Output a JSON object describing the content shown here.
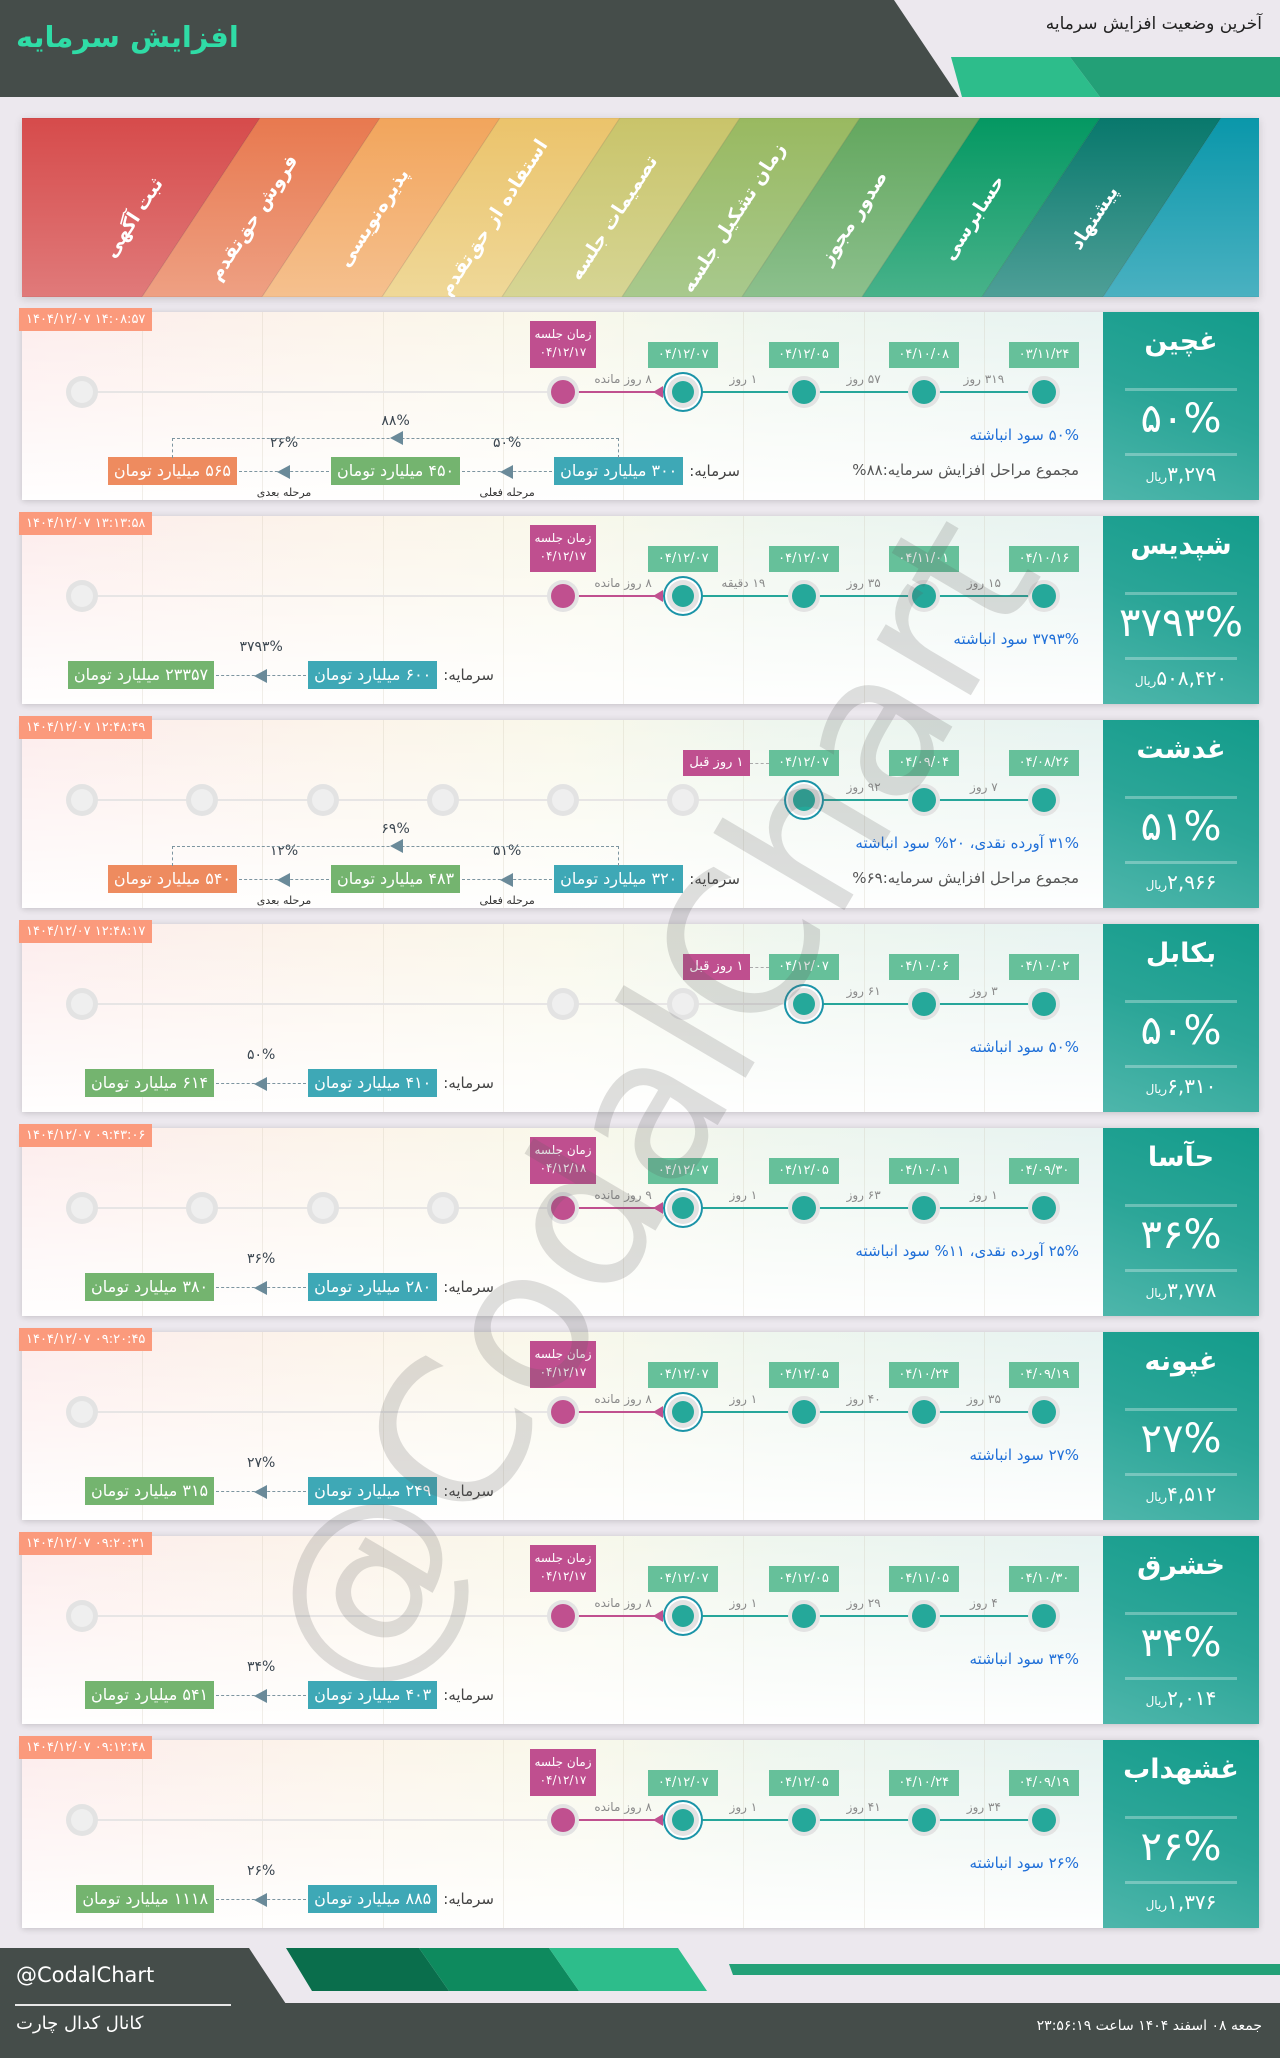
{
  "header": {
    "title": "افزایش سرمایه",
    "subtitle": "آخرین وضعیت افزایش سرمایه"
  },
  "colors": {
    "header_dark": "#454d4a",
    "accent_green": "#2dbd8b",
    "accent_green_dark": "#23a077",
    "done": "#25a89a",
    "meeting": "#bf4f8f",
    "date_badge": "#66c09a",
    "timestamp_badge": "#fb9a7c"
  },
  "stages": {
    "items": [
      {
        "label": "ثبت آگهی",
        "color_top": "#d64b4b",
        "color_bottom": "#e07a7a"
      },
      {
        "label": "فروش حق‌تقدم",
        "color_top": "#e8794f",
        "color_bottom": "#eea083"
      },
      {
        "label": "پذیره‌نویسی",
        "color_top": "#f2a55c",
        "color_bottom": "#f5c08e"
      },
      {
        "label": "استفاده از حق‌تقدم",
        "color_top": "#ebc36b",
        "color_bottom": "#efd898"
      },
      {
        "label": "تصمیمات جلسه",
        "color_top": "#c9c46a",
        "color_bottom": "#d6d594"
      },
      {
        "label": "زمان تشکیل جلسه",
        "color_top": "#99b960",
        "color_bottom": "#a8c98d"
      },
      {
        "label": "صدور مجوز",
        "color_top": "#63a75e",
        "color_bottom": "#8cc08d"
      },
      {
        "label": "حسابرسی",
        "color_top": "#049862",
        "color_bottom": "#48b28a"
      },
      {
        "label": "پیشنهاد",
        "color_top": "#08786c",
        "color_bottom": "#4e9f97"
      }
    ],
    "end_band": {
      "color_top": "#0a97aa",
      "color_bottom": "#4ab1c1"
    }
  },
  "labels": {
    "meeting": "زمان جلسه",
    "capital": "سرمایه:",
    "currency": "ریال"
  },
  "cards": [
    {
      "name": "غچین",
      "percent": "۵۰%",
      "price": "۳,۲۷۹",
      "timestamp": "۱۴۰۴/۱۲/۰۷ ۱۴:۰۸:۵۷",
      "inactive_stages": [
        0
      ],
      "steps": [
        {
          "stage": 8,
          "date": "۰۳/۱۱/۲۴"
        },
        {
          "stage": 7,
          "date": "۰۴/۱۰/۰۸"
        },
        {
          "stage": 6,
          "date": "۰۴/۱۲/۰۵"
        },
        {
          "stage": 5,
          "date": "۰۴/۱۲/۰۷",
          "current": true
        }
      ],
      "gaps": [
        "۳۱۹ روز",
        "۵۷ روز",
        "۱ روز"
      ],
      "meeting": {
        "stage": 4,
        "date": "۰۴/۱۲/۱۷",
        "remaining": "۸ روز مانده"
      },
      "description": "۵۰% سود انباشته",
      "summary": "مجموع مراحل افزایش سرمایه:۸۸%",
      "capital": {
        "amounts": [
          "۳۰۰ میلیارد تومان",
          "۴۵۰ میلیارد تومان",
          "۵۶۵ میلیارد تومان"
        ],
        "steps": [
          {
            "percent": "۵۰%",
            "caption": "مرحله فعلی"
          },
          {
            "percent": "۲۶%",
            "caption": "مرحله بعدی"
          }
        ],
        "total": "۸۸%"
      }
    },
    {
      "name": "شپدیس",
      "percent": "۳۷۹۳%",
      "price": "۵۰۸,۴۲۰",
      "timestamp": "۱۴۰۴/۱۲/۰۷ ۱۳:۱۳:۵۸",
      "inactive_stages": [
        0
      ],
      "steps": [
        {
          "stage": 8,
          "date": "۰۴/۱۰/۱۶"
        },
        {
          "stage": 7,
          "date": "۰۴/۱۱/۰۱"
        },
        {
          "stage": 6,
          "date": "۰۴/۱۲/۰۷"
        },
        {
          "stage": 5,
          "date": "۰۴/۱۲/۰۷",
          "current": true
        }
      ],
      "gaps": [
        "۱۵ روز",
        "۳۵ روز",
        "۱۹ دقیقه"
      ],
      "meeting": {
        "stage": 4,
        "date": "۰۴/۱۲/۱۷",
        "remaining": "۸ روز مانده"
      },
      "description": "۳۷۹۳% سود انباشته",
      "capital": {
        "amounts": [
          "۶۰۰ میلیارد تومان",
          "۲۳۳۵۷ میلیارد تومان"
        ],
        "steps": [
          {
            "percent": "۳۷۹۳%"
          }
        ]
      }
    },
    {
      "name": "غدشت",
      "percent": "۵۱%",
      "price": "۲,۹۶۶",
      "timestamp": "۱۴۰۴/۱۲/۰۷ ۱۲:۴۸:۴۹",
      "inactive_stages": [
        0,
        1,
        2,
        3,
        4,
        5
      ],
      "steps": [
        {
          "stage": 8,
          "date": "۰۴/۰۸/۲۶"
        },
        {
          "stage": 7,
          "date": "۰۴/۰۹/۰۴"
        },
        {
          "stage": 6,
          "date": "۰۴/۱۲/۰۷",
          "current": true
        }
      ],
      "gaps": [
        "۷ روز",
        "۹۲ روز"
      ],
      "ago": "۱ روز قبل",
      "description": "۳۱% آورده نقدی، ۲۰% سود انباشته",
      "summary": "مجموع مراحل افزایش سرمایه:۶۹%",
      "capital": {
        "amounts": [
          "۳۲۰ میلیارد تومان",
          "۴۸۳ میلیارد تومان",
          "۵۴۰ میلیارد تومان"
        ],
        "steps": [
          {
            "percent": "۵۱%",
            "caption": "مرحله فعلی"
          },
          {
            "percent": "۱۲%",
            "caption": "مرحله بعدی"
          }
        ],
        "total": "۶۹%"
      }
    },
    {
      "name": "بکابل",
      "percent": "۵۰%",
      "price": "۶,۳۱۰",
      "timestamp": "۱۴۰۴/۱۲/۰۷ ۱۲:۴۸:۱۷",
      "inactive_stages": [
        0,
        4,
        5
      ],
      "steps": [
        {
          "stage": 8,
          "date": "۰۴/۱۰/۰۲"
        },
        {
          "stage": 7,
          "date": "۰۴/۱۰/۰۶"
        },
        {
          "stage": 6,
          "date": "۰۴/۱۲/۰۷",
          "current": true
        }
      ],
      "gaps": [
        "۳ روز",
        "۶۱ روز"
      ],
      "ago": "۱ روز قبل",
      "description": "۵۰% سود انباشته",
      "capital": {
        "amounts": [
          "۴۱۰ میلیارد تومان",
          "۶۱۴ میلیارد تومان"
        ],
        "steps": [
          {
            "percent": "۵۰%"
          }
        ]
      }
    },
    {
      "name": "حآسا",
      "percent": "۳۶%",
      "price": "۳,۷۷۸",
      "timestamp": "۱۴۰۴/۱۲/۰۷ ۰۹:۴۳:۰۶",
      "inactive_stages": [
        0,
        1,
        2,
        3
      ],
      "steps": [
        {
          "stage": 8,
          "date": "۰۴/۰۹/۳۰"
        },
        {
          "stage": 7,
          "date": "۰۴/۱۰/۰۱"
        },
        {
          "stage": 6,
          "date": "۰۴/۱۲/۰۵"
        },
        {
          "stage": 5,
          "date": "۰۴/۱۲/۰۷",
          "current": true
        }
      ],
      "gaps": [
        "۱ روز",
        "۶۳ روز",
        "۱ روز"
      ],
      "meeting": {
        "stage": 4,
        "date": "۰۴/۱۲/۱۸",
        "remaining": "۹ روز مانده"
      },
      "description": "۲۵% آورده نقدی، ۱۱% سود انباشته",
      "capital": {
        "amounts": [
          "۲۸۰ میلیارد تومان",
          "۳۸۰ میلیارد تومان"
        ],
        "steps": [
          {
            "percent": "۳۶%"
          }
        ]
      }
    },
    {
      "name": "غپونه",
      "percent": "۲۷%",
      "price": "۴,۵۱۲",
      "timestamp": "۱۴۰۴/۱۲/۰۷ ۰۹:۲۰:۴۵",
      "inactive_stages": [
        0
      ],
      "steps": [
        {
          "stage": 8,
          "date": "۰۴/۰۹/۱۹"
        },
        {
          "stage": 7,
          "date": "۰۴/۱۰/۲۴"
        },
        {
          "stage": 6,
          "date": "۰۴/۱۲/۰۵"
        },
        {
          "stage": 5,
          "date": "۰۴/۱۲/۰۷",
          "current": true
        }
      ],
      "gaps": [
        "۳۵ روز",
        "۴۰ روز",
        "۱ روز"
      ],
      "meeting": {
        "stage": 4,
        "date": "۰۴/۱۲/۱۷",
        "remaining": "۸ روز مانده"
      },
      "description": "۲۷% سود انباشته",
      "capital": {
        "amounts": [
          "۲۴۹ میلیارد تومان",
          "۳۱۵ میلیارد تومان"
        ],
        "steps": [
          {
            "percent": "۲۷%"
          }
        ]
      }
    },
    {
      "name": "خشرق",
      "percent": "۳۴%",
      "price": "۲,۰۱۴",
      "timestamp": "۱۴۰۴/۱۲/۰۷ ۰۹:۲۰:۳۱",
      "inactive_stages": [
        0
      ],
      "steps": [
        {
          "stage": 8,
          "date": "۰۴/۱۰/۳۰"
        },
        {
          "stage": 7,
          "date": "۰۴/۱۱/۰۵"
        },
        {
          "stage": 6,
          "date": "۰۴/۱۲/۰۵"
        },
        {
          "stage": 5,
          "date": "۰۴/۱۲/۰۷",
          "current": true
        }
      ],
      "gaps": [
        "۴ روز",
        "۲۹ روز",
        "۱ روز"
      ],
      "meeting": {
        "stage": 4,
        "date": "۰۴/۱۲/۱۷",
        "remaining": "۸ روز مانده"
      },
      "description": "۳۴% سود انباشته",
      "capital": {
        "amounts": [
          "۴۰۳ میلیارد تومان",
          "۵۴۱ میلیارد تومان"
        ],
        "steps": [
          {
            "percent": "۳۴%"
          }
        ]
      }
    },
    {
      "name": "غشهداب",
      "percent": "۲۶%",
      "price": "۱,۳۷۶",
      "timestamp": "۱۴۰۴/۱۲/۰۷ ۰۹:۱۲:۴۸",
      "inactive_stages": [
        0
      ],
      "steps": [
        {
          "stage": 8,
          "date": "۰۴/۰۹/۱۹"
        },
        {
          "stage": 7,
          "date": "۰۴/۱۰/۲۴"
        },
        {
          "stage": 6,
          "date": "۰۴/۱۲/۰۵"
        },
        {
          "stage": 5,
          "date": "۰۴/۱۲/۰۷",
          "current": true
        }
      ],
      "gaps": [
        "۳۴ روز",
        "۴۱ روز",
        "۱ روز"
      ],
      "meeting": {
        "stage": 4,
        "date": "۰۴/۱۲/۱۷",
        "remaining": "۸ روز مانده"
      },
      "description": "۲۶% سود انباشته",
      "capital": {
        "amounts": [
          "۸۸۵ میلیارد تومان",
          "۱۱۱۸ میلیارد تومان"
        ],
        "steps": [
          {
            "percent": "۲۶%"
          }
        ]
      }
    }
  ],
  "watermark": "@CodalChart",
  "footer": {
    "handle": "@CodalChart",
    "channel": "کانال کدال چارت",
    "datetime": "جمعه ۰۸ اسفند ۱۴۰۴ ساعت ۲۳:۵۶:۱۹"
  }
}
